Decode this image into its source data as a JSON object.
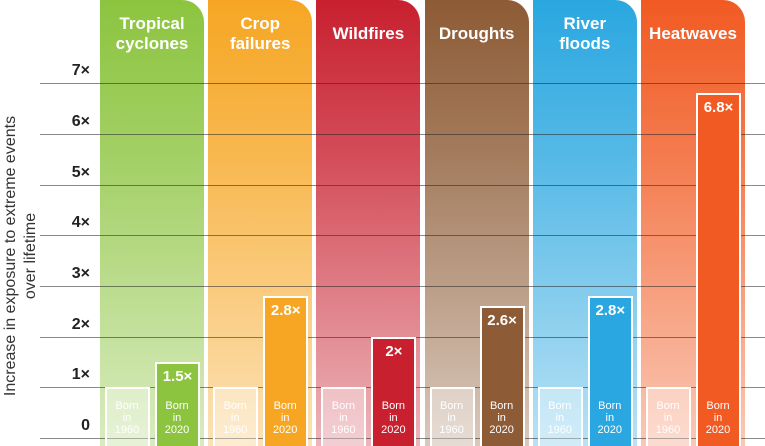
{
  "chart_data": {
    "type": "bar",
    "y_axis_label": "Increase in exposure to extreme events over lifetime",
    "categories": [
      "Tropical cyclones",
      "Crop failures",
      "Wildfires",
      "Droughts",
      "River floods",
      "Heatwaves"
    ],
    "colors": [
      "#8cc43f",
      "#f6a623",
      "#c8202f",
      "#8d5b35",
      "#2aa7e0",
      "#f15a22"
    ],
    "series": [
      {
        "name": "Born in 1960",
        "values": [
          1,
          1,
          1,
          1,
          1,
          1
        ]
      },
      {
        "name": "Born in 2020",
        "values": [
          1.5,
          2.8,
          2,
          2.6,
          2.8,
          6.8
        ],
        "value_labels": [
          "1.5×",
          "2.8×",
          "2×",
          "2.6×",
          "2.8×",
          "6.8×"
        ]
      }
    ],
    "ylim": [
      0,
      7.2
    ],
    "yticks": [
      0,
      {
        "value": 1,
        "label": "1×"
      },
      {
        "value": 2,
        "label": "2×"
      },
      {
        "value": 3,
        "label": "3×"
      },
      {
        "value": 4,
        "label": "4×"
      },
      {
        "value": 5,
        "label": "5×"
      },
      {
        "value": 6,
        "label": "6×"
      },
      {
        "value": 7,
        "label": "7×"
      }
    ],
    "grid": true
  }
}
